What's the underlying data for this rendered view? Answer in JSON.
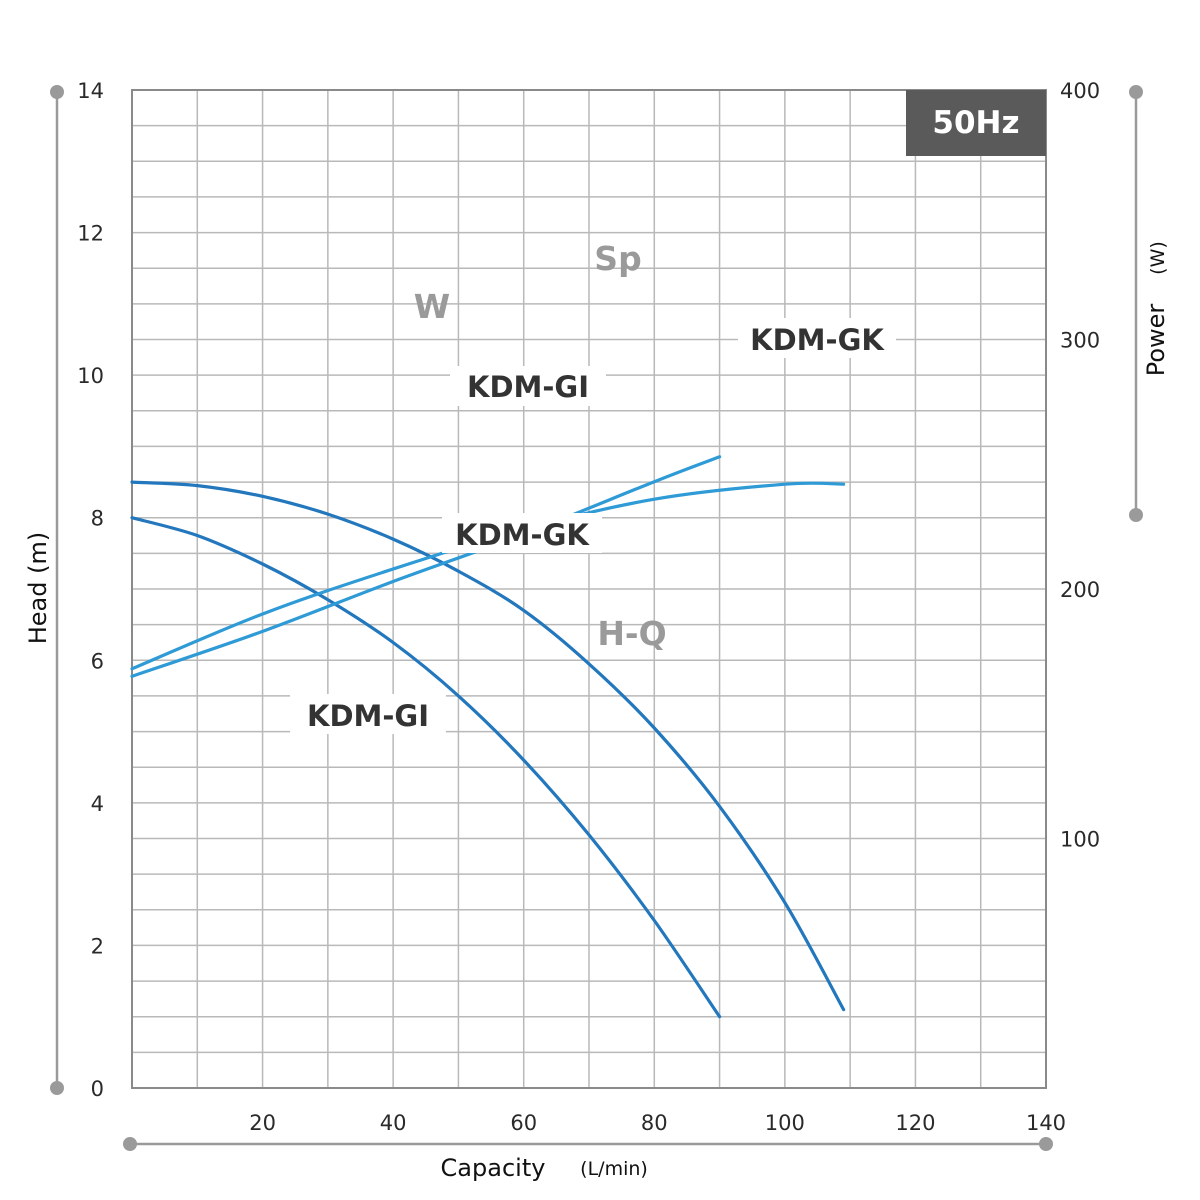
{
  "chart_data": {
    "type": "line",
    "badge": "50Hz",
    "colors": {
      "badge_bg": "#5a5a5a",
      "grid": "#b9b9b9",
      "frame": "#8a8a8a",
      "axis_rail": "#9a9a9a",
      "power_curve": "#2e9ad6",
      "hq_curve": "#2277bd"
    },
    "x_axis": {
      "title": "Capacity",
      "unit": "(L/min)",
      "range": [
        0,
        140
      ],
      "ticks": [
        20,
        40,
        60,
        80,
        100,
        120,
        140
      ]
    },
    "y_axis_left": {
      "title": "Head (m)",
      "range": [
        0,
        14
      ],
      "ticks": [
        0,
        2,
        4,
        6,
        8,
        10,
        12,
        14
      ]
    },
    "y_axis_right": {
      "title": "Power",
      "unit": "(W)",
      "range": [
        0,
        400
      ],
      "ticks": [
        100,
        200,
        300,
        400
      ]
    },
    "group_labels": {
      "power": [
        "W",
        "Sp"
      ],
      "head": "H-Q"
    },
    "series": [
      {
        "name": "KDM-GK",
        "group": "H-Q",
        "axis": "left",
        "x": [
          0,
          10,
          20,
          30,
          40,
          50,
          60,
          70,
          80,
          90,
          100,
          109
        ],
        "y": [
          8.5,
          8.45,
          8.3,
          8.05,
          7.7,
          7.25,
          6.7,
          5.95,
          5.05,
          3.95,
          2.6,
          1.1
        ]
      },
      {
        "name": "KDM-GI",
        "group": "H-Q",
        "axis": "left",
        "x": [
          0,
          10,
          20,
          30,
          40,
          50,
          60,
          70,
          80,
          90
        ],
        "y": [
          8.0,
          7.75,
          7.35,
          6.85,
          6.25,
          5.5,
          4.6,
          3.55,
          2.35,
          1.0
        ]
      },
      {
        "name": "KDM-GK",
        "group": "W",
        "axis": "right",
        "x": [
          0,
          20,
          40,
          60,
          80,
          100,
          109
        ],
        "y": [
          168,
          190,
          208,
          224,
          236,
          242,
          242
        ]
      },
      {
        "name": "KDM-GI",
        "group": "W",
        "axis": "right",
        "x": [
          0,
          20,
          40,
          60,
          80,
          90
        ],
        "y": [
          165,
          183,
          203,
          222,
          243,
          253
        ]
      }
    ],
    "series_labels": {
      "hq_gk": "KDM-GK",
      "hq_gi": "KDM-GI",
      "w_gk": "KDM-GK",
      "w_gi": "KDM-GI"
    },
    "grid": true
  }
}
